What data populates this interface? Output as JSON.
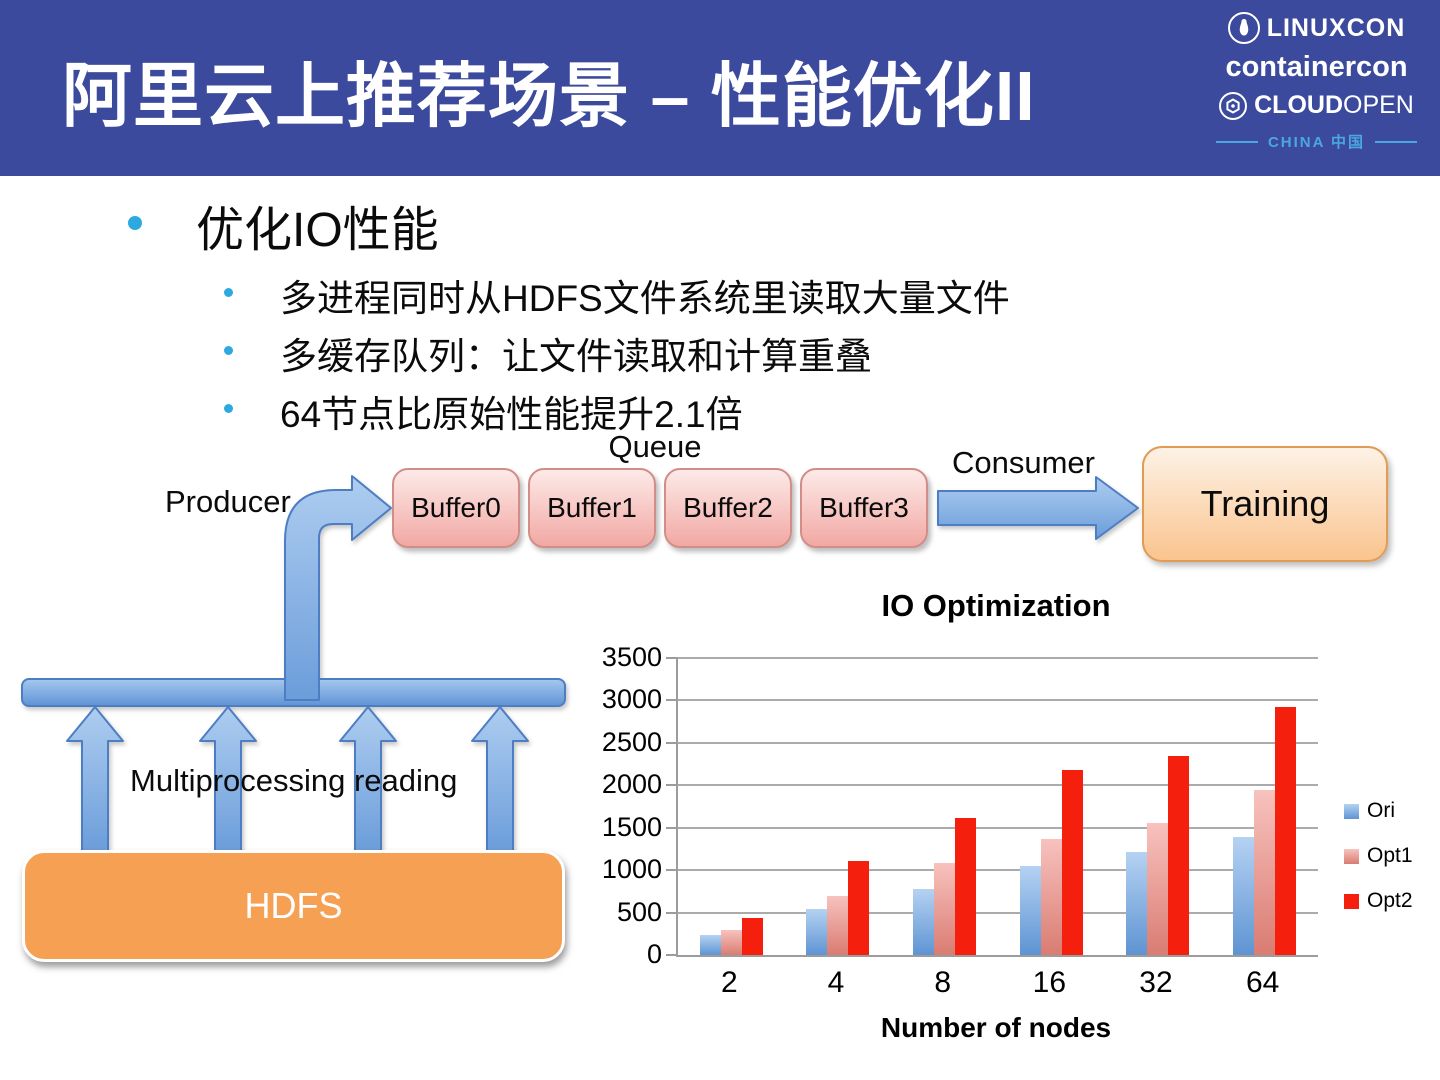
{
  "header": {
    "title": "阿里云上推荐场景 – 性能优化II",
    "logos": {
      "linuxcon": "LINUXCON",
      "containercon": "containercon",
      "cloud": "CLOUD",
      "open": "OPEN",
      "china": "CHINA 中国"
    }
  },
  "bullets": {
    "main": "优化IO性能",
    "sub": [
      "多进程同时从HDFS文件系统里读取大量文件",
      "多缓存队列：让文件读取和计算重叠",
      "64节点比原始性能提升2.1倍"
    ]
  },
  "diagram": {
    "producer_label": "Producer",
    "queue_label": "Queue",
    "consumer_label": "Consumer",
    "buffers": [
      "Buffer0",
      "Buffer1",
      "Buffer2",
      "Buffer3"
    ],
    "training_label": "Training",
    "multiprocessing_label": "Multiprocessing reading",
    "hdfs_label": "HDFS"
  },
  "chart_data": {
    "type": "bar",
    "title": "IO Optimization",
    "xlabel": "Number of nodes",
    "ylabel": "",
    "categories": [
      "2",
      "4",
      "8",
      "16",
      "32",
      "64"
    ],
    "series": [
      {
        "name": "Ori",
        "values": [
          230,
          540,
          780,
          1050,
          1210,
          1390
        ]
      },
      {
        "name": "Opt1",
        "values": [
          300,
          690,
          1090,
          1370,
          1560,
          1950
        ]
      },
      {
        "name": "Opt2",
        "values": [
          440,
          1110,
          1620,
          2180,
          2350,
          2920
        ]
      }
    ],
    "ylim": [
      0,
      3500
    ],
    "yticks": [
      0,
      500,
      1000,
      1500,
      2000,
      2500,
      3000,
      3500
    ],
    "grid": true,
    "legend_position": "right"
  },
  "colors": {
    "header_bg": "#3C4A9D",
    "bullet_accent": "#2EA9E0",
    "china_label": "#4AA8DF",
    "arrow_fill_top": "#AECDF0",
    "arrow_fill_bottom": "#6B9DDA",
    "arrow_stroke": "#4D7EC3",
    "buffer_border": "#D18D87",
    "training_border": "#E09B55",
    "hdfs_fill": "#F5A053",
    "series_ori": "#5E94D3",
    "series_opt1": "#D97C72",
    "series_opt2": "#F4200D",
    "gridline": "#ABABAB"
  }
}
